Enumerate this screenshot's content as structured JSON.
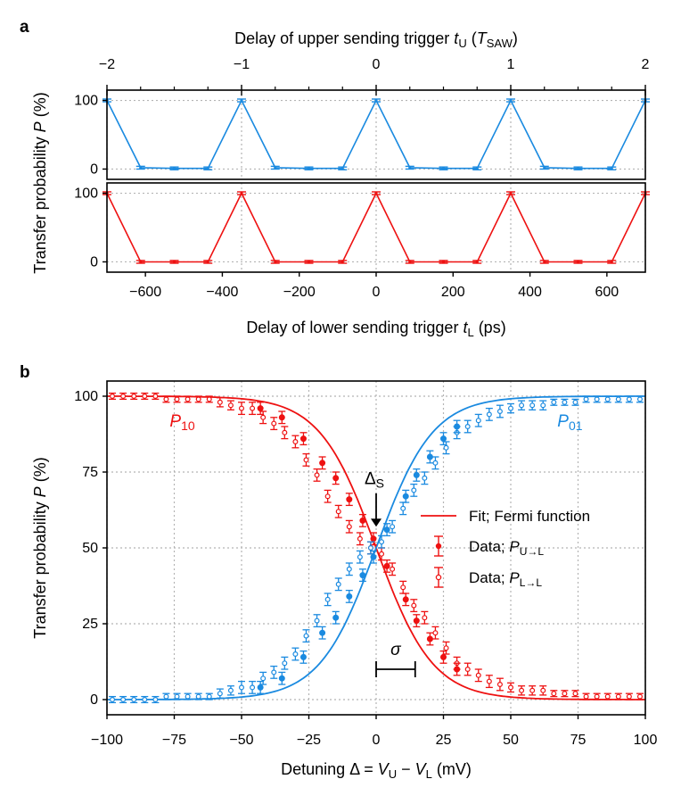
{
  "figure": {
    "panel_a_letter": "a",
    "panel_b_letter": "b"
  },
  "colors": {
    "red": "#ee1111",
    "blue": "#1a8ae0",
    "axis": "#000000",
    "grid": "#b4b4b4"
  },
  "chart_data": [
    {
      "id": "a_top",
      "type": "line",
      "title": "",
      "xlabel_top": {
        "prefix": "Delay of upper sending trigger ",
        "var": "t",
        "sub": "U",
        "suffix_open": " (",
        "unit": "T",
        "unit_sub": "SAW",
        "suffix_close": ")"
      },
      "ylabel": "",
      "xlim": [
        -2,
        2
      ],
      "ylim": [
        -15,
        115
      ],
      "xticks": [
        -2,
        -1,
        0,
        1,
        2
      ],
      "xtick_labels": [
        "−2",
        "−1",
        "0",
        "1",
        "2"
      ],
      "yticks": [
        0,
        100
      ],
      "ytick_labels": [
        "0",
        "100"
      ],
      "grid": true,
      "series": [
        {
          "name": "P top (upper trigger)",
          "color": "blue",
          "x": [
            -2,
            -1.75,
            -1.5,
            -1.25,
            -1,
            -0.75,
            -0.5,
            -0.25,
            0,
            0.25,
            0.5,
            0.75,
            1,
            1.25,
            1.5,
            1.75,
            2
          ],
          "y": [
            100,
            2,
            1,
            1,
            100,
            2,
            1,
            1,
            100,
            2,
            1,
            1,
            100,
            2,
            1,
            1,
            100
          ],
          "yerr": [
            2,
            2,
            2,
            2,
            2,
            2,
            2,
            2,
            2,
            2,
            2,
            2,
            2,
            2,
            2,
            2,
            2
          ]
        }
      ]
    },
    {
      "id": "a_bottom",
      "type": "line",
      "title": "",
      "xlabel": {
        "prefix": "Delay of lower sending trigger ",
        "var": "t",
        "sub": "L",
        "suffix": " (ps)"
      },
      "xlim": [
        -700,
        700
      ],
      "ylim": [
        -15,
        115
      ],
      "xticks": [
        -600,
        -400,
        -200,
        0,
        200,
        400,
        600
      ],
      "xtick_labels": [
        "−600",
        "−400",
        "−200",
        "0",
        "200",
        "400",
        "600"
      ],
      "yticks": [
        0,
        100
      ],
      "ytick_labels": [
        "0",
        "100"
      ],
      "grid": true,
      "series": [
        {
          "name": "P bottom (lower trigger)",
          "color": "red",
          "x": [
            -700,
            -612.5,
            -525,
            -437.5,
            -350,
            -262.5,
            -175,
            -87.5,
            0,
            87.5,
            175,
            262.5,
            350,
            437.5,
            525,
            612.5,
            700
          ],
          "y": [
            100,
            0,
            0,
            0,
            100,
            0,
            0,
            0,
            100,
            0,
            0,
            0,
            100,
            0,
            0,
            0,
            100
          ],
          "yerr": [
            2,
            2,
            2,
            2,
            2,
            2,
            2,
            2,
            2,
            2,
            2,
            2,
            2,
            2,
            2,
            2,
            2
          ]
        }
      ]
    },
    {
      "id": "b",
      "type": "scatter",
      "title": "",
      "xlabel": {
        "prefix": "Detuning Δ = ",
        "v1": "V",
        "s1": "U",
        "mid": " − ",
        "v2": "V",
        "s2": "L",
        "suffix": " (mV)"
      },
      "ylabel": {
        "prefix": "Transfer probability ",
        "var": "P",
        "suffix": " (%)"
      },
      "xlim": [
        -100,
        100
      ],
      "ylim": [
        -5,
        105
      ],
      "xticks": [
        -100,
        -75,
        -50,
        -25,
        0,
        25,
        50,
        75,
        100
      ],
      "xtick_labels": [
        "−100",
        "−75",
        "−50",
        "−25",
        "0",
        "25",
        "50",
        "75",
        "100"
      ],
      "yticks": [
        0,
        25,
        50,
        75,
        100
      ],
      "ytick_labels": [
        "0",
        "25",
        "50",
        "75",
        "100"
      ],
      "grid": true,
      "fit": {
        "model": "fermi",
        "center": 0,
        "width": 10.5
      },
      "series": [
        {
          "name": "P10 open (L→L)",
          "color": "red",
          "marker": "open",
          "x": [
            -98,
            -94,
            -90,
            -86,
            -82,
            -78,
            -74,
            -70,
            -66,
            -62,
            -58,
            -54,
            -50,
            -46,
            -42,
            -38,
            -34,
            -30,
            -26,
            -22,
            -18,
            -14,
            -10,
            -6,
            -2,
            2,
            6,
            10,
            14,
            18,
            22,
            26,
            30,
            34,
            38,
            42,
            46,
            50,
            54,
            58,
            62,
            66,
            70,
            74,
            78,
            82,
            86,
            90,
            94,
            98
          ],
          "y": [
            100,
            100,
            100,
            100,
            100,
            99,
            99,
            99,
            99,
            99,
            98,
            97,
            96,
            96,
            93,
            91,
            88,
            85,
            79,
            74,
            67,
            62,
            57,
            53,
            50,
            48,
            43,
            37,
            31,
            27,
            22,
            17,
            12,
            10,
            8,
            6,
            5,
            4,
            3,
            3,
            3,
            2,
            2,
            2,
            1,
            1,
            1,
            1,
            1,
            1
          ],
          "yerr": [
            1,
            1,
            1,
            1,
            1,
            1,
            1,
            1,
            1,
            1,
            1.5,
            1.5,
            2,
            2,
            2,
            2,
            2,
            2,
            2,
            2,
            2,
            2,
            2,
            2,
            2,
            2,
            2,
            2,
            2,
            2,
            2,
            2,
            2,
            2,
            2,
            2,
            2,
            1.5,
            1.5,
            1.5,
            1.5,
            1,
            1,
            1,
            1,
            1,
            1,
            1,
            1,
            1
          ]
        },
        {
          "name": "P10 filled (U→L)",
          "color": "red",
          "marker": "filled",
          "x": [
            -43,
            -35,
            -27,
            -20,
            -15,
            -10,
            -5,
            -1,
            4,
            11,
            15,
            20,
            25,
            30
          ],
          "y": [
            96,
            93,
            86,
            78,
            73,
            66,
            59,
            53,
            44,
            33,
            26,
            20,
            14,
            10
          ],
          "yerr": [
            2,
            2,
            2,
            2,
            2,
            2,
            2,
            2,
            2,
            2,
            2,
            2,
            2,
            2
          ]
        },
        {
          "name": "P01 open",
          "color": "blue",
          "marker": "open",
          "x": [
            -98,
            -94,
            -90,
            -86,
            -82,
            -78,
            -74,
            -70,
            -66,
            -62,
            -58,
            -54,
            -50,
            -46,
            -42,
            -38,
            -34,
            -30,
            -26,
            -22,
            -18,
            -14,
            -10,
            -6,
            -2,
            2,
            6,
            10,
            14,
            18,
            22,
            26,
            30,
            34,
            38,
            42,
            46,
            50,
            54,
            58,
            62,
            66,
            70,
            74,
            78,
            82,
            86,
            90,
            94,
            98
          ],
          "y": [
            0,
            0,
            0,
            0,
            0,
            1,
            1,
            1,
            1,
            1,
            2,
            3,
            4,
            4,
            7,
            9,
            12,
            15,
            21,
            26,
            33,
            38,
            43,
            47,
            50,
            52,
            57,
            63,
            69,
            73,
            78,
            83,
            88,
            90,
            92,
            94,
            95,
            96,
            97,
            97,
            97,
            98,
            98,
            98,
            99,
            99,
            99,
            99,
            99,
            99
          ],
          "yerr": [
            1,
            1,
            1,
            1,
            1,
            1,
            1,
            1,
            1,
            1,
            1.5,
            1.5,
            2,
            2,
            2,
            2,
            2,
            2,
            2,
            2,
            2,
            2,
            2,
            2,
            2,
            2,
            2,
            2,
            2,
            2,
            2,
            2,
            2,
            2,
            2,
            2,
            2,
            1.5,
            1.5,
            1.5,
            1.5,
            1,
            1,
            1,
            1,
            1,
            1,
            1,
            1,
            1
          ]
        },
        {
          "name": "P01 filled",
          "color": "blue",
          "marker": "filled",
          "x": [
            -43,
            -35,
            -27,
            -20,
            -15,
            -10,
            -5,
            -1,
            4,
            11,
            15,
            20,
            25,
            30
          ],
          "y": [
            4,
            7,
            14,
            22,
            27,
            34,
            41,
            47,
            56,
            67,
            74,
            80,
            86,
            90
          ],
          "yerr": [
            2,
            2,
            2,
            2,
            2,
            2,
            2,
            2,
            2,
            2,
            2,
            2,
            2,
            2
          ]
        }
      ],
      "annotations": {
        "p10_label": {
          "var": "P",
          "sub": "10",
          "color": "red",
          "x": -72,
          "y": 90
        },
        "p01_label": {
          "var": "P",
          "sub": "01",
          "color": "blue",
          "x": 72,
          "y": 90
        },
        "delta_s": {
          "text": "Δ",
          "sub": "S",
          "x": 0,
          "y": 71
        },
        "arrow": {
          "from": [
            0,
            68
          ],
          "to": [
            0,
            57
          ]
        },
        "sigma": {
          "text": "σ",
          "x1": 0,
          "x2": 14.5,
          "y": 10
        }
      },
      "legend": {
        "position": "center-right",
        "entries": [
          {
            "kind": "line",
            "label": "Fit; Fermi function"
          },
          {
            "kind": "filled",
            "label_prefix": "Data; ",
            "var": "P",
            "sub": "U→L"
          },
          {
            "kind": "open",
            "label_prefix": "Data; ",
            "var": "P",
            "sub": "L→L"
          }
        ]
      }
    }
  ],
  "shared_ylabel_a": {
    "prefix": "Transfer probability ",
    "var": "P",
    "suffix": " (%)"
  }
}
